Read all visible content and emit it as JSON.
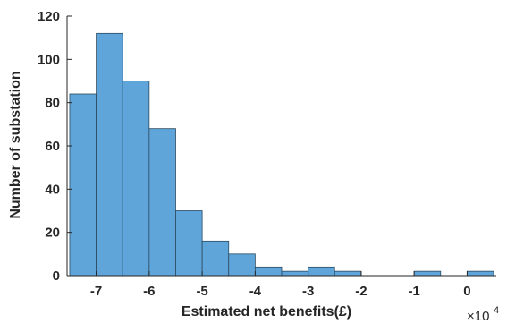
{
  "chart_data": {
    "type": "bar",
    "subtype": "histogram",
    "title": "",
    "xlabel": "Estimated net benefits(£)",
    "ylabel": "Number of substation",
    "x_exponent_label": "×10",
    "x_exponent_power": "4",
    "bin_width": 0.5,
    "bins": [
      {
        "start": -7.5,
        "end": -7.0,
        "count": 84
      },
      {
        "start": -7.0,
        "end": -6.5,
        "count": 112
      },
      {
        "start": -6.5,
        "end": -6.0,
        "count": 90
      },
      {
        "start": -6.0,
        "end": -5.5,
        "count": 68
      },
      {
        "start": -5.5,
        "end": -5.0,
        "count": 30
      },
      {
        "start": -5.0,
        "end": -4.5,
        "count": 16
      },
      {
        "start": -4.5,
        "end": -4.0,
        "count": 10
      },
      {
        "start": -4.0,
        "end": -3.5,
        "count": 4
      },
      {
        "start": -3.5,
        "end": -3.0,
        "count": 2
      },
      {
        "start": -3.0,
        "end": -2.5,
        "count": 4
      },
      {
        "start": -2.5,
        "end": -2.0,
        "count": 2
      },
      {
        "start": -1.0,
        "end": -0.5,
        "count": 2
      },
      {
        "start": 0.0,
        "end": 0.5,
        "count": 2
      }
    ],
    "xlim": [
      -7.55,
      0.55
    ],
    "ylim": [
      0,
      120
    ],
    "xticks": [
      -7,
      -6,
      -5,
      -4,
      -3,
      -2,
      -1,
      0
    ],
    "yticks": [
      0,
      20,
      40,
      60,
      80,
      100,
      120
    ],
    "xtick_labels": [
      "-7",
      "-6",
      "-5",
      "-4",
      "-3",
      "-2",
      "-1",
      "0"
    ],
    "ytick_labels": [
      "0",
      "20",
      "40",
      "60",
      "80",
      "100",
      "120"
    ],
    "grid": false,
    "legend": "none",
    "bar_color": "#5fa5d9",
    "edge_color": "#2a4a60"
  }
}
